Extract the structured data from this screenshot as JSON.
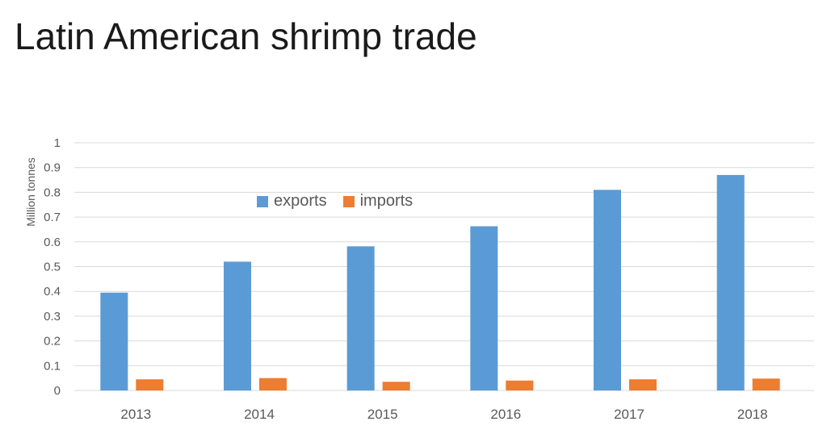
{
  "title": "Latin American shrimp trade",
  "colors": {
    "exports": "#5B9BD5",
    "imports": "#ED7D31",
    "grid": "#d9d9d9",
    "text": "#595959"
  },
  "chart_data": {
    "type": "bar",
    "title": "",
    "xlabel": "",
    "ylabel": "Million tonnes",
    "ylim": [
      0,
      1
    ],
    "y_ticks": [
      "0",
      "0.1",
      "0.2",
      "0.3",
      "0.4",
      "0.5",
      "0.6",
      "0.7",
      "0.8",
      "0.9",
      "1"
    ],
    "grid": true,
    "legend_position": "top-left inside plot",
    "categories": [
      "2013",
      "2014",
      "2015",
      "2016",
      "2017",
      "2018"
    ],
    "series": [
      {
        "name": "exports",
        "values": [
          0.395,
          0.52,
          0.582,
          0.663,
          0.81,
          0.87
        ]
      },
      {
        "name": "imports",
        "values": [
          0.045,
          0.05,
          0.035,
          0.04,
          0.045,
          0.048
        ]
      }
    ]
  }
}
